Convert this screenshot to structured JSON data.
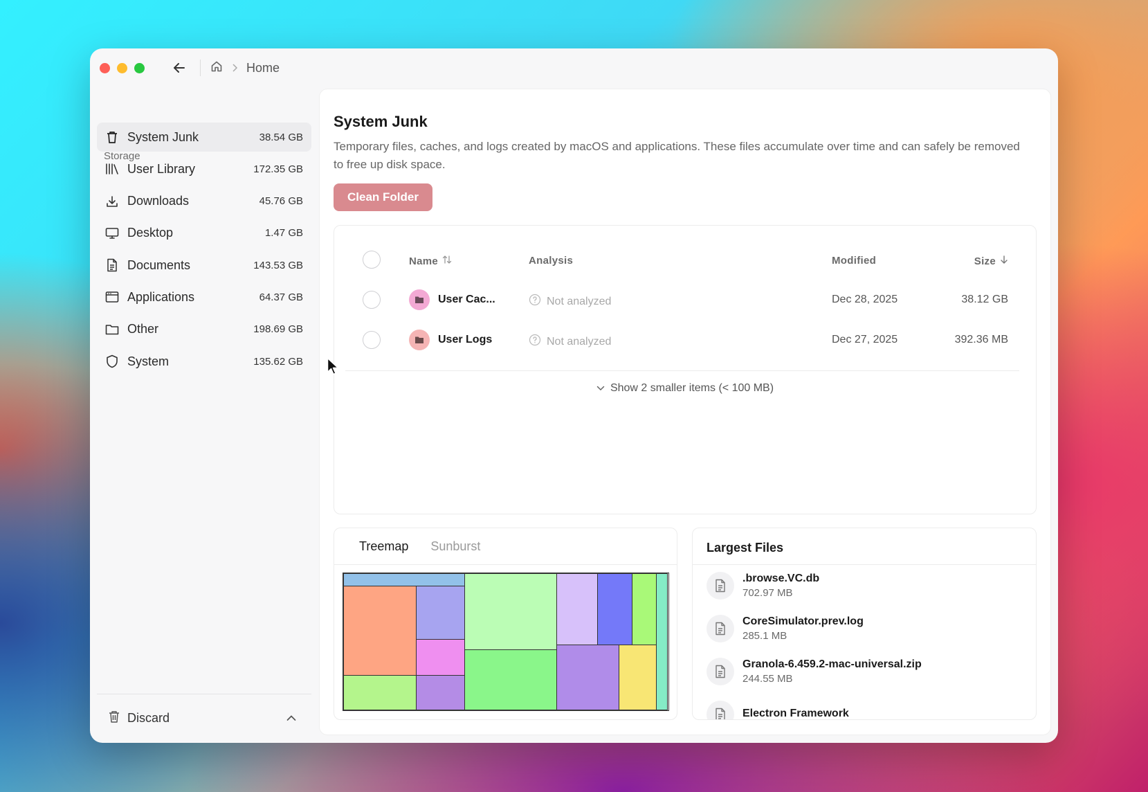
{
  "titlebar": {
    "breadcrumb_label": "Home"
  },
  "sidebar": {
    "heading": "Storage",
    "items": [
      {
        "label": "System Junk",
        "size": "38.54 GB",
        "icon": "trash-icon",
        "active": true
      },
      {
        "label": "User Library",
        "size": "172.35 GB",
        "icon": "library-icon"
      },
      {
        "label": "Downloads",
        "size": "45.76 GB",
        "icon": "download-icon"
      },
      {
        "label": "Desktop",
        "size": "1.47 GB",
        "icon": "monitor-icon"
      },
      {
        "label": "Documents",
        "size": "143.53 GB",
        "icon": "document-icon"
      },
      {
        "label": "Applications",
        "size": "64.37 GB",
        "icon": "app-window-icon"
      },
      {
        "label": "Other",
        "size": "198.69 GB",
        "icon": "folder-icon"
      },
      {
        "label": "System",
        "size": "135.62 GB",
        "icon": "shield-icon"
      }
    ],
    "footer": {
      "label": "Discard"
    }
  },
  "main": {
    "title": "System Junk",
    "description": "Temporary files, caches, and logs created by macOS and applications. These files accumulate over time and can safely be removed to free up disk space.",
    "clean_button": "Clean Folder",
    "table": {
      "headers": {
        "name": "Name",
        "analysis": "Analysis",
        "modified": "Modified",
        "size": "Size"
      },
      "rows": [
        {
          "name": "User Cac...",
          "analysis": "Not analyzed",
          "modified": "Dec 28, 2025",
          "size": "38.12 GB",
          "badge_color": "#f3a9d4"
        },
        {
          "name": "User Logs",
          "analysis": "Not analyzed",
          "modified": "Dec 27, 2025",
          "size": "392.36 MB",
          "badge_color": "#f5b4b4"
        }
      ],
      "show_more": "Show 2 smaller items (< 100 MB)"
    },
    "viz_tabs": {
      "treemap": "Treemap",
      "sunburst": "Sunburst"
    },
    "treemap_colors": [
      "#92c1e9",
      "#fea583",
      "#a7a4f0",
      "#ef8ff0",
      "#b4f58c",
      "#b48ce6",
      "#bbfdb5",
      "#8af68a",
      "#d7c1fa",
      "#7479f9",
      "#b08ce9",
      "#a9f978",
      "#f8e674",
      "#85ecc6"
    ],
    "largest_files": {
      "title": "Largest Files",
      "items": [
        {
          "name": ".browse.VC.db",
          "size": "702.97 MB"
        },
        {
          "name": "CoreSimulator.prev.log",
          "size": "285.1 MB"
        },
        {
          "name": "Granola-6.459.2-mac-universal.zip",
          "size": "244.55 MB"
        },
        {
          "name": "Electron Framework",
          "size": ""
        }
      ]
    }
  }
}
